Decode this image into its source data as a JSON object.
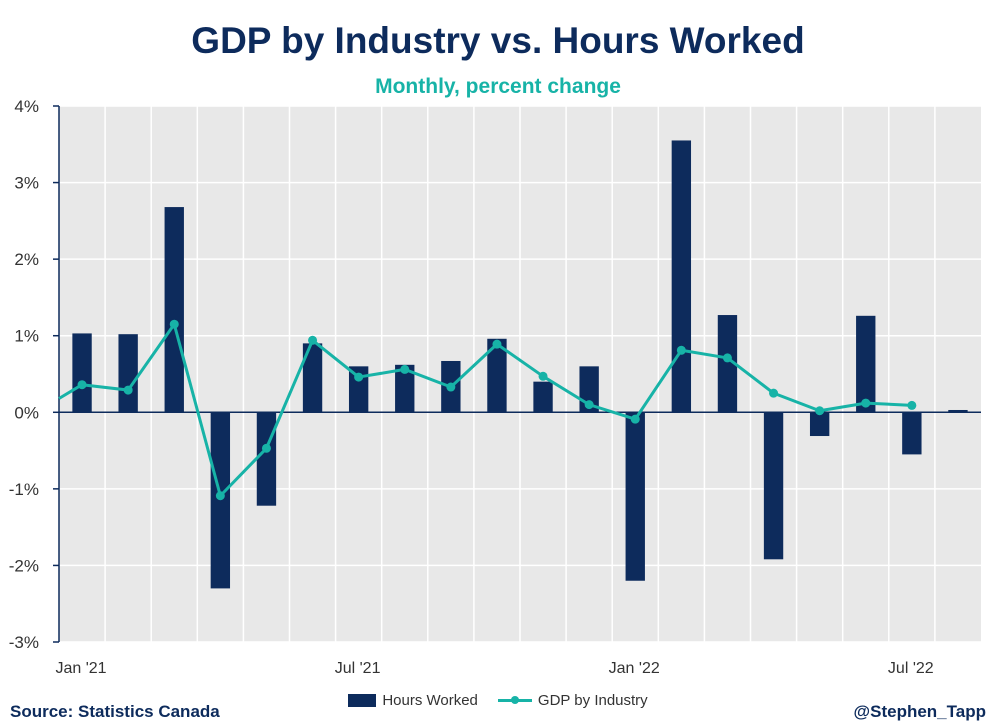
{
  "title": "GDP by Industry vs. Hours Worked",
  "subtitle": "Monthly, percent change",
  "source": "Source: Statistics Canada",
  "handle": "@Stephen_Tapp",
  "colors": {
    "bars": "#0d2b5c",
    "line": "#17b3a7",
    "plot_bg": "#e8e8e8",
    "grid": "#ffffff",
    "axis": "#0d2b5c"
  },
  "chart_data": {
    "type": "bar",
    "title": "GDP by Industry vs. Hours Worked",
    "subtitle": "Monthly, percent change",
    "categories": [
      "Jan '21",
      "Feb '21",
      "Mar '21",
      "Apr '21",
      "May '21",
      "Jun '21",
      "Jul '21",
      "Aug '21",
      "Sep '21",
      "Oct '21",
      "Nov '21",
      "Dec '21",
      "Jan '22",
      "Feb '22",
      "Mar '22",
      "Apr '22",
      "May '22",
      "Jun '22",
      "Jul '22",
      "Aug '22"
    ],
    "x_tick_labels": [
      "Jan '21",
      "Jul '21",
      "Jan '22",
      "Jul '22"
    ],
    "y_tick_labels": [
      "4%",
      "3%",
      "2%",
      "1%",
      "0%",
      "-1%",
      "-2%",
      "-3%"
    ],
    "ylim": [
      -3,
      4
    ],
    "grid": true,
    "legend_position": "bottom",
    "series": [
      {
        "name": "Hours Worked",
        "type": "bar",
        "values": [
          1.03,
          1.02,
          2.68,
          -2.3,
          -1.22,
          0.9,
          0.6,
          0.62,
          0.67,
          0.96,
          0.4,
          0.6,
          -2.2,
          3.55,
          1.27,
          -1.92,
          -0.31,
          1.26,
          -0.55,
          0.03
        ]
      },
      {
        "name": "GDP by Industry",
        "type": "line",
        "values": [
          0.36,
          0.29,
          1.15,
          -1.09,
          -0.47,
          0.94,
          0.46,
          0.56,
          0.33,
          0.89,
          0.47,
          0.1,
          -0.09,
          0.81,
          0.71,
          0.25,
          0.02,
          0.12,
          0.09,
          null
        ],
        "extends_from_left": 0.18
      }
    ]
  }
}
